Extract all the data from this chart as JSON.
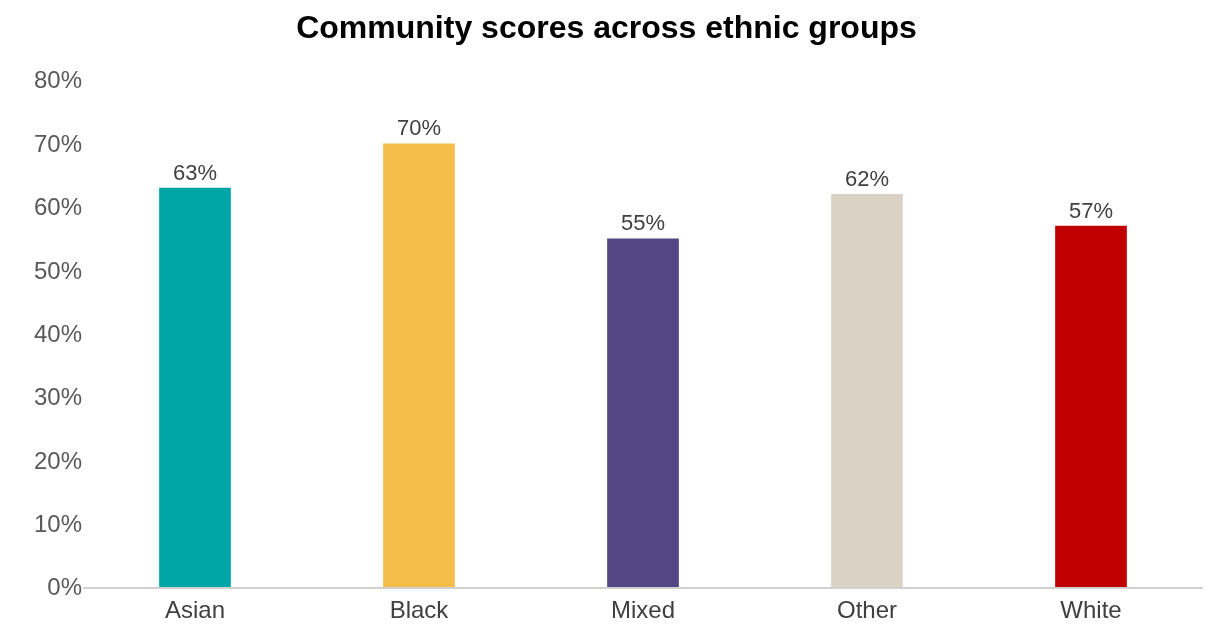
{
  "chart_data": {
    "type": "bar",
    "title": "Community scores across ethnic groups",
    "categories": [
      "Asian",
      "Black",
      "Mixed",
      "Other",
      "White"
    ],
    "values": [
      63,
      70,
      55,
      62,
      57
    ],
    "colors": [
      "#00a6a6",
      "#f5bd4b",
      "#534684",
      "#d9d2c5",
      "#c00000"
    ],
    "value_labels": [
      "63%",
      "70%",
      "55%",
      "62%",
      "57%"
    ],
    "ylim": [
      0,
      80
    ],
    "yticks": [
      {
        "value": 0,
        "label": "0%"
      },
      {
        "value": 10,
        "label": "10%"
      },
      {
        "value": 20,
        "label": "20%"
      },
      {
        "value": 30,
        "label": "30%"
      },
      {
        "value": 40,
        "label": "40%"
      },
      {
        "value": 50,
        "label": "50%"
      },
      {
        "value": 60,
        "label": "60%"
      },
      {
        "value": 70,
        "label": "70%"
      },
      {
        "value": 80,
        "label": "80%"
      }
    ],
    "legend": false
  }
}
